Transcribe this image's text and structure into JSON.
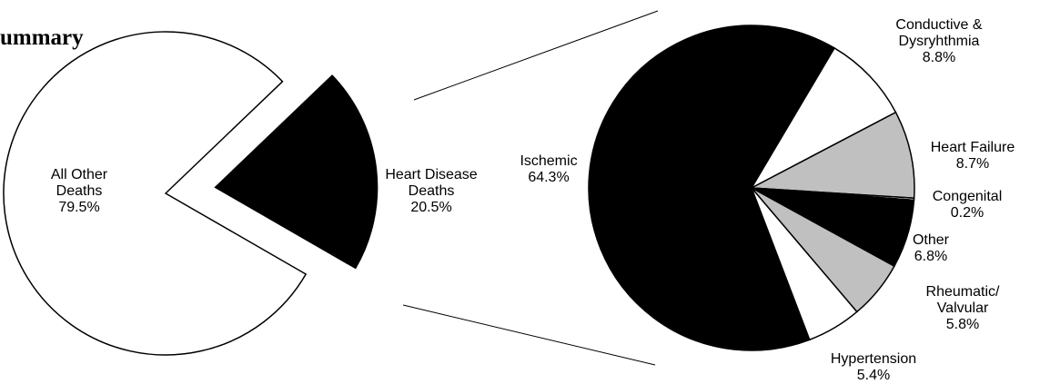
{
  "title": "ummary",
  "chart_data": [
    {
      "type": "pie",
      "title": "",
      "slices": [
        {
          "label_lines": [
            "All Other",
            "Deaths",
            "79.5%"
          ],
          "value": 79.5,
          "color": "#ffffff",
          "exploded": false
        },
        {
          "label_lines": [
            "Heart Disease",
            "Deaths",
            "20.5%"
          ],
          "value": 20.5,
          "color": "#000000",
          "exploded": true
        }
      ],
      "legend": "none"
    },
    {
      "type": "pie",
      "title": "",
      "slices": [
        {
          "label_lines": [
            "Ischemic",
            "64.3%"
          ],
          "value": 64.3,
          "color": "#000000"
        },
        {
          "label_lines": [
            "Conductive &",
            "Dysryhthmia",
            "8.8%"
          ],
          "value": 8.8,
          "color": "#ffffff"
        },
        {
          "label_lines": [
            "Heart Failure",
            "8.7%"
          ],
          "value": 8.7,
          "color": "#c0c0c0"
        },
        {
          "label_lines": [
            "Congenital",
            "0.2%"
          ],
          "value": 0.2,
          "color": "#ffffff"
        },
        {
          "label_lines": [
            "Other",
            "6.8%"
          ],
          "value": 6.8,
          "color": "#000000"
        },
        {
          "label_lines": [
            "Rheumatic/",
            "Valvular",
            "5.8%"
          ],
          "value": 5.8,
          "color": "#c0c0c0"
        },
        {
          "label_lines": [
            "Hypertension",
            "5.4%"
          ],
          "value": 5.4,
          "color": "#ffffff"
        }
      ],
      "legend": "none"
    }
  ]
}
